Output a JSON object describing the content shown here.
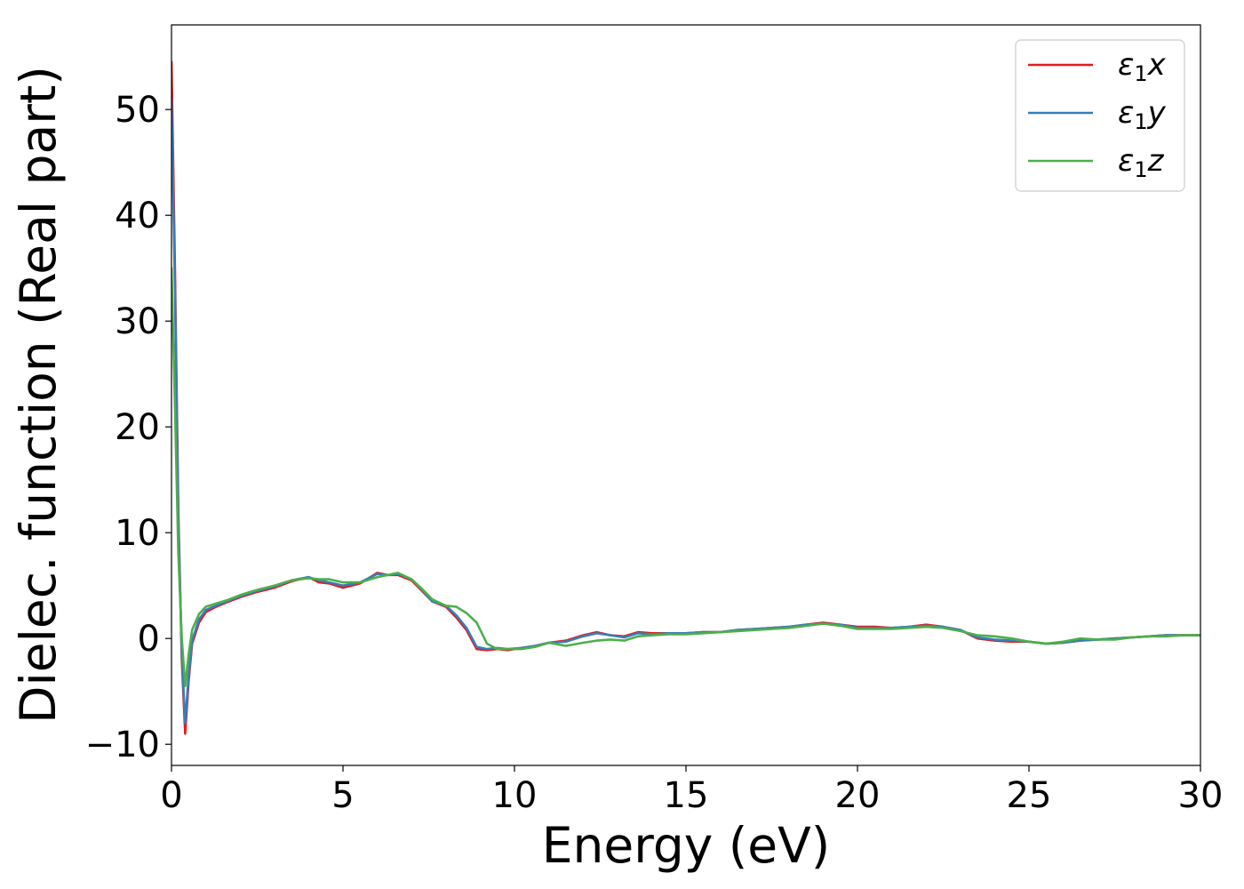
{
  "chart_data": {
    "type": "line",
    "xlabel": "Energy (eV)",
    "ylabel": "Dielec. function (Real part)",
    "xlim": [
      0,
      30
    ],
    "ylim": [
      -12,
      58
    ],
    "xticks": [
      0,
      5,
      10,
      15,
      20,
      25,
      30
    ],
    "xtick_labels": [
      "0",
      "5",
      "10",
      "15",
      "20",
      "25",
      "30"
    ],
    "yticks": [
      -10,
      0,
      10,
      20,
      30,
      40,
      50
    ],
    "ytick_labels": [
      "−10",
      "0",
      "10",
      "20",
      "30",
      "40",
      "50"
    ],
    "grid": false,
    "legend_position": "top-right",
    "series": [
      {
        "name": "ε₁x",
        "legend_main": "ε",
        "legend_sub": "1",
        "legend_var": "x",
        "color": "#e41a1c",
        "x": [
          0,
          0.1,
          0.2,
          0.3,
          0.4,
          0.5,
          0.6,
          0.8,
          1.0,
          1.3,
          1.6,
          2.0,
          2.5,
          3.0,
          3.5,
          4.0,
          4.3,
          4.6,
          5.0,
          5.5,
          6.0,
          6.3,
          6.6,
          7.0,
          7.3,
          7.6,
          8.0,
          8.3,
          8.6,
          8.9,
          9.2,
          9.5,
          9.8,
          10.2,
          10.6,
          11.0,
          11.5,
          12.0,
          12.4,
          12.8,
          13.2,
          13.6,
          14.0,
          14.5,
          15.0,
          15.5,
          16.0,
          16.5,
          17.0,
          17.5,
          18.0,
          18.5,
          19.0,
          19.5,
          20.0,
          20.5,
          21.0,
          21.5,
          22.0,
          22.5,
          23.0,
          23.5,
          24.0,
          24.5,
          25.0,
          25.5,
          26.0,
          26.5,
          27.0,
          27.5,
          28.0,
          28.5,
          29.0,
          29.5,
          30.0
        ],
        "y": [
          54.5,
          35,
          12,
          -2,
          -9,
          -4,
          -0.5,
          1.5,
          2.5,
          3.0,
          3.4,
          3.9,
          4.4,
          4.8,
          5.4,
          5.8,
          5.3,
          5.2,
          4.8,
          5.2,
          6.2,
          6.0,
          6.0,
          5.5,
          4.5,
          3.5,
          3.0,
          2.0,
          0.8,
          -1.0,
          -1.1,
          -1.0,
          -1.1,
          -0.9,
          -0.7,
          -0.4,
          -0.2,
          0.3,
          0.6,
          0.3,
          0.2,
          0.6,
          0.5,
          0.5,
          0.5,
          0.6,
          0.6,
          0.8,
          0.9,
          1.0,
          1.1,
          1.3,
          1.5,
          1.3,
          1.1,
          1.1,
          1.0,
          1.1,
          1.3,
          1.1,
          0.8,
          0.0,
          -0.2,
          -0.3,
          -0.3,
          -0.5,
          -0.4,
          -0.2,
          -0.1,
          0.0,
          0.1,
          0.2,
          0.3,
          0.3,
          0.3
        ]
      },
      {
        "name": "ε₁y",
        "legend_main": "ε",
        "legend_sub": "1",
        "legend_var": "y",
        "color": "#377eb8",
        "x": [
          0,
          0.1,
          0.2,
          0.3,
          0.4,
          0.5,
          0.6,
          0.8,
          1.0,
          1.3,
          1.6,
          2.0,
          2.5,
          3.0,
          3.5,
          4.0,
          4.3,
          4.6,
          5.0,
          5.5,
          6.0,
          6.3,
          6.6,
          7.0,
          7.3,
          7.6,
          8.0,
          8.3,
          8.6,
          8.9,
          9.2,
          9.5,
          9.8,
          10.2,
          10.6,
          11.0,
          11.5,
          12.0,
          12.4,
          12.8,
          13.2,
          13.6,
          14.0,
          14.5,
          15.0,
          15.5,
          16.0,
          16.5,
          17.0,
          17.5,
          18.0,
          18.5,
          19.0,
          19.5,
          20.0,
          20.5,
          21.0,
          21.5,
          22.0,
          22.5,
          23.0,
          23.5,
          24.0,
          24.5,
          25.0,
          25.5,
          26.0,
          26.5,
          27.0,
          27.5,
          28.0,
          28.5,
          29.0,
          29.5,
          30.0
        ],
        "y": [
          51,
          33,
          11,
          -1.5,
          -8,
          -3.5,
          -0.2,
          1.8,
          2.7,
          3.1,
          3.5,
          4.0,
          4.5,
          4.9,
          5.5,
          5.8,
          5.5,
          5.3,
          5.0,
          5.3,
          6.1,
          6.0,
          6.1,
          5.6,
          4.6,
          3.5,
          3.1,
          2.2,
          1.0,
          -0.8,
          -1.0,
          -0.9,
          -1.0,
          -0.9,
          -0.7,
          -0.4,
          -0.3,
          0.2,
          0.5,
          0.3,
          0.1,
          0.5,
          0.4,
          0.5,
          0.5,
          0.6,
          0.6,
          0.8,
          0.9,
          1.0,
          1.1,
          1.3,
          1.4,
          1.3,
          1.0,
          1.0,
          1.0,
          1.1,
          1.2,
          1.1,
          0.8,
          0.1,
          -0.1,
          -0.2,
          -0.3,
          -0.5,
          -0.4,
          -0.2,
          -0.1,
          0.0,
          0.1,
          0.2,
          0.3,
          0.3,
          0.3
        ]
      },
      {
        "name": "ε₁z",
        "legend_main": "ε",
        "legend_sub": "1",
        "legend_var": "z",
        "color": "#4daf4a",
        "x": [
          0,
          0.1,
          0.2,
          0.3,
          0.4,
          0.5,
          0.6,
          0.8,
          1.0,
          1.3,
          1.6,
          2.0,
          2.5,
          3.0,
          3.5,
          4.0,
          4.3,
          4.6,
          5.0,
          5.5,
          6.0,
          6.3,
          6.6,
          7.0,
          7.3,
          7.6,
          8.0,
          8.3,
          8.6,
          8.9,
          9.2,
          9.5,
          9.8,
          10.2,
          10.6,
          11.0,
          11.5,
          12.0,
          12.4,
          12.8,
          13.2,
          13.6,
          14.0,
          14.5,
          15.0,
          15.5,
          16.0,
          16.5,
          17.0,
          17.5,
          18.0,
          18.5,
          19.0,
          19.5,
          20.0,
          20.5,
          21.0,
          21.5,
          22.0,
          22.5,
          23.0,
          23.5,
          24.0,
          24.5,
          25.0,
          25.5,
          26.0,
          26.5,
          27.0,
          27.5,
          28.0,
          28.5,
          29.0,
          29.5,
          30.0
        ],
        "y": [
          35,
          22,
          8,
          0,
          -4.5,
          -1.5,
          0.8,
          2.3,
          3.0,
          3.3,
          3.6,
          4.1,
          4.6,
          5.0,
          5.5,
          5.7,
          5.6,
          5.6,
          5.3,
          5.3,
          5.8,
          6.0,
          6.2,
          5.6,
          4.7,
          3.7,
          3.1,
          3.0,
          2.4,
          1.5,
          -0.5,
          -1.0,
          -1.0,
          -1.0,
          -0.8,
          -0.4,
          -0.7,
          -0.4,
          -0.2,
          -0.1,
          -0.2,
          0.2,
          0.3,
          0.4,
          0.4,
          0.5,
          0.6,
          0.7,
          0.8,
          0.9,
          1.0,
          1.2,
          1.4,
          1.2,
          0.9,
          0.9,
          0.9,
          1.0,
          1.1,
          1.0,
          0.7,
          0.3,
          0.2,
          0.0,
          -0.3,
          -0.5,
          -0.3,
          0.0,
          -0.1,
          -0.1,
          0.1,
          0.2,
          0.2,
          0.3,
          0.3
        ]
      }
    ]
  }
}
